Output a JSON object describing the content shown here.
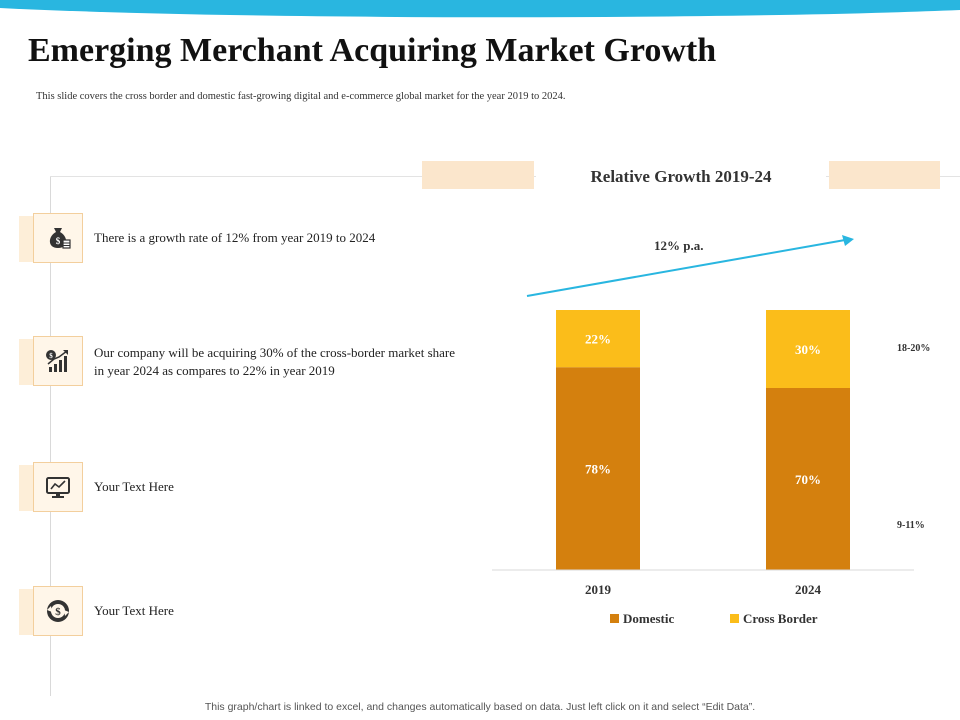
{
  "header": {
    "title": "Emerging Merchant Acquiring Market Growth",
    "subtitle": "This slide covers  the cross  border and domestic fast-growing digital and e-commerce  global market for the year  2019  to 2024."
  },
  "items": [
    {
      "icon": "money-bag-icon",
      "text": "There is  a growth rate of 12% from year 2019 to 2024"
    },
    {
      "icon": "growth-chart-icon",
      "text": "Our company will be acquiring 30% of the cross-border market share in year 2024 as compares to 22% in year 2019"
    },
    {
      "icon": "monitor-chart-icon",
      "text": "Your Text Here"
    },
    {
      "icon": "dollar-cycle-icon",
      "text": "Your Text Here"
    }
  ],
  "footer": {
    "note": "This graph/chart is linked to excel,  and changes automatically based on data. Just left click on it and select “Edit Data”."
  },
  "colors": {
    "domestic": "#d4800e",
    "cross_border": "#fbbd1a",
    "arrow": "#29b6e0",
    "deco": "#fbe6cc",
    "wave": "#29b6e0"
  },
  "chart_data": {
    "type": "bar",
    "stacked": true,
    "title": "Relative Growth  2019-24",
    "categories": [
      "2019",
      "2024"
    ],
    "series": [
      {
        "name": "Domestic",
        "values": [
          78,
          70
        ],
        "labels": [
          "78%",
          "70%"
        ]
      },
      {
        "name": "Cross Border",
        "values": [
          22,
          30
        ],
        "labels": [
          "22%",
          "30%"
        ]
      }
    ],
    "ylim": [
      0,
      100
    ],
    "legend": "bottom",
    "grid": false,
    "annotations": {
      "growth": "12% p.a.",
      "cross_border_range": "18-20%",
      "domestic_range": "9-11%"
    }
  }
}
